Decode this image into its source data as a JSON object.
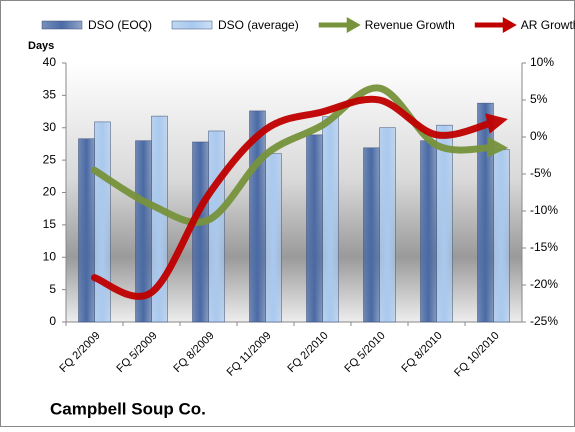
{
  "chart_data": {
    "type": "bar-line",
    "title": "Campbell Soup Co.",
    "ylabel": "Days",
    "categories": [
      "FQ 2/2009",
      "FQ 5/2009",
      "FQ 8/2009",
      "FQ 11/2009",
      "FQ 2/2010",
      "FQ 5/2010",
      "FQ 8/2010",
      "FQ 10/2010"
    ],
    "series": [
      {
        "name": "DSO (EOQ)",
        "kind": "bar",
        "color": "#4a6aa5",
        "values": [
          28.3,
          28,
          27.8,
          32.6,
          28.9,
          26.9,
          28,
          33.8
        ]
      },
      {
        "name": "DSO (average)",
        "kind": "bar",
        "color": "#a9c9ef",
        "values": [
          30.9,
          31.8,
          29.5,
          26,
          31.7,
          30,
          30.4,
          26.6
        ]
      },
      {
        "name": "Revenue Growth",
        "kind": "line",
        "axis": "y2",
        "color": "#77933c",
        "values": [
          -4.5,
          -9.2,
          -11.2,
          -2.4,
          1.6,
          6.6,
          -1.1,
          -1.4
        ]
      },
      {
        "name": "AR Growth",
        "kind": "line",
        "axis": "y2",
        "color": "#c00000",
        "values": [
          -19,
          -21,
          -7.8,
          1,
          3.4,
          5,
          0.3,
          2
        ]
      }
    ],
    "ylim": [
      0,
      40
    ],
    "yticks": [
      0,
      5,
      10,
      15,
      20,
      25,
      30,
      35,
      40
    ],
    "y2lim": [
      -25,
      10
    ],
    "y2ticks": [
      {
        "value": -25,
        "label": "-25%"
      },
      {
        "value": -20,
        "label": "-20%"
      },
      {
        "value": -15,
        "label": "-15%"
      },
      {
        "value": -10,
        "label": "-10%"
      },
      {
        "value": -5,
        "label": "-5%"
      },
      {
        "value": 0,
        "label": "0%"
      },
      {
        "value": 5,
        "label": "5%"
      },
      {
        "value": 10,
        "label": "10%"
      }
    ]
  }
}
